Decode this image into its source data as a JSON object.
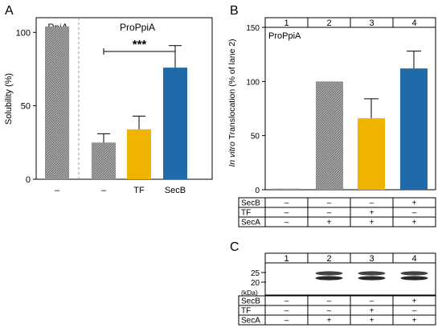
{
  "panel_labels": [
    "A",
    "B",
    "C"
  ],
  "colors": {
    "grey": "#7f7f7f",
    "hatch_light": "#bdbdbd",
    "orange": "#f0b400",
    "blue": "#1f6aa8"
  },
  "chart_data": [
    {
      "type": "bar",
      "panel": "A",
      "ylabel": "Solubility (%)",
      "ylim": [
        0,
        110
      ],
      "yticks": [
        0,
        50,
        100
      ],
      "group_labels": [
        "PpiA",
        "ProPpiA"
      ],
      "categories": [
        "–",
        "–",
        "TF",
        "SecB"
      ],
      "values": [
        104,
        25,
        34,
        76
      ],
      "errors": [
        0,
        6,
        9,
        15
      ],
      "bar_colors": [
        "hatch",
        "hatch",
        "#f0b400",
        "#1f6aa8"
      ],
      "significance": {
        "from": 1,
        "to": 3,
        "label": "***"
      }
    },
    {
      "type": "bar",
      "panel": "B",
      "title": "ProPpiA",
      "ylabel_italic": "In vitro",
      "ylabel_rest": " Translocation (% of lane 2)",
      "ylim": [
        0,
        150
      ],
      "yticks": [
        0,
        50,
        100,
        150
      ],
      "lanes": [
        "1",
        "2",
        "3",
        "4"
      ],
      "values": [
        1,
        100,
        66,
        112
      ],
      "errors": [
        0,
        0,
        18,
        16
      ],
      "bar_colors": [
        "hatch",
        "hatch",
        "#f0b400",
        "#1f6aa8"
      ],
      "conditions": [
        {
          "label": "SecB",
          "values": [
            "–",
            "–",
            "–",
            "+"
          ]
        },
        {
          "label": "TF",
          "values": [
            "–",
            "–",
            "+",
            "–"
          ]
        },
        {
          "label": "SecA",
          "values": [
            "–",
            "+",
            "+",
            "+"
          ]
        }
      ]
    },
    {
      "type": "table",
      "panel": "C",
      "lanes": [
        "1",
        "2",
        "3",
        "4"
      ],
      "markers": [
        "25",
        "20"
      ],
      "marker_unit": "(kDa)",
      "band_present": [
        false,
        true,
        true,
        true
      ],
      "conditions": [
        {
          "label": "SecB",
          "values": [
            "–",
            "–",
            "–",
            "+"
          ]
        },
        {
          "label": "TF",
          "values": [
            "–",
            "–",
            "+",
            "–"
          ]
        },
        {
          "label": "SecA",
          "values": [
            "–",
            "+",
            "+",
            "+"
          ]
        }
      ]
    }
  ]
}
